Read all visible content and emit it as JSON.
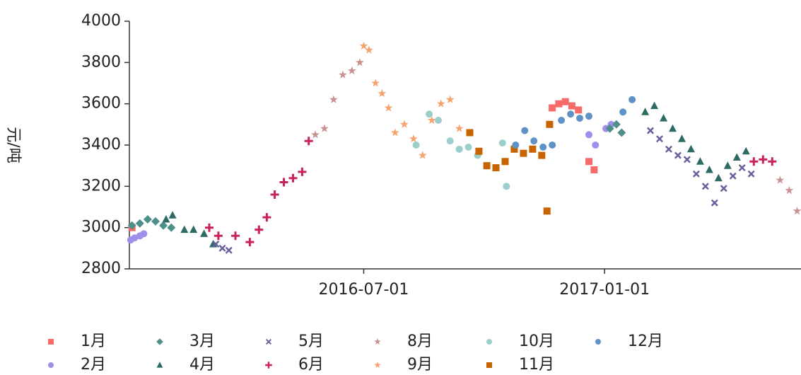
{
  "chart_data": {
    "type": "scatter",
    "y_label": "元/吨",
    "xlim": [
      "2016-01-04",
      "2017-05-31"
    ],
    "xticks": [
      "2016-07-01",
      "2017-01-01"
    ],
    "ylim": [
      2800,
      4000
    ],
    "yticks": [
      2800,
      3000,
      3200,
      3400,
      3600,
      3800,
      4000
    ],
    "grid": false,
    "series": [
      {
        "name": "1月",
        "color": "#f76a6a",
        "marker": "square",
        "x": [
          "2016-01-06",
          "2016-11-22",
          "2016-11-27",
          "2016-12-02",
          "2016-12-07",
          "2016-12-12",
          "2016-12-20",
          "2016-12-24"
        ],
        "values": [
          3000,
          3580,
          3600,
          3610,
          3590,
          3570,
          3320,
          3280
        ]
      },
      {
        "name": "2月",
        "color": "#9d8fea",
        "marker": "circle",
        "x": [
          "2016-01-05",
          "2016-01-08",
          "2016-01-12",
          "2016-01-15",
          "2016-12-20",
          "2016-12-25",
          "2017-01-02",
          "2017-01-06"
        ],
        "values": [
          2940,
          2950,
          2960,
          2970,
          3450,
          3400,
          3480,
          3500
        ]
      },
      {
        "name": "3月",
        "color": "#4f8f8a",
        "marker": "diamond",
        "x": [
          "2016-01-06",
          "2016-01-12",
          "2016-01-18",
          "2016-01-24",
          "2016-01-30",
          "2016-02-05",
          "2017-01-05",
          "2017-01-10",
          "2017-01-14"
        ],
        "values": [
          3010,
          3020,
          3040,
          3030,
          3010,
          3000,
          3480,
          3500,
          3460
        ]
      },
      {
        "name": "4月",
        "color": "#2d6a63",
        "marker": "triangle",
        "x": [
          "2016-02-01",
          "2016-02-06",
          "2016-02-15",
          "2016-02-22",
          "2016-03-01",
          "2016-03-08",
          "2017-02-01",
          "2017-02-08",
          "2017-02-15",
          "2017-02-22",
          "2017-03-01",
          "2017-03-08",
          "2017-03-15",
          "2017-03-22",
          "2017-03-29",
          "2017-04-05",
          "2017-04-12",
          "2017-04-19"
        ],
        "values": [
          3040,
          3060,
          2990,
          2990,
          2970,
          2920,
          3560,
          3590,
          3530,
          3480,
          3430,
          3380,
          3320,
          3280,
          3240,
          3300,
          3340,
          3370
        ]
      },
      {
        "name": "5月",
        "color": "#6a5f9e",
        "marker": "cross",
        "x": [
          "2016-03-10",
          "2016-03-15",
          "2016-03-20",
          "2017-02-05",
          "2017-02-12",
          "2017-02-19",
          "2017-02-26",
          "2017-03-05",
          "2017-03-12",
          "2017-03-19",
          "2017-03-26",
          "2017-04-02",
          "2017-04-09",
          "2017-04-16",
          "2017-04-23"
        ],
        "values": [
          2920,
          2900,
          2890,
          3470,
          3430,
          3380,
          3350,
          3330,
          3260,
          3200,
          3120,
          3190,
          3250,
          3290,
          3260
        ]
      },
      {
        "name": "6月",
        "color": "#c8245a",
        "marker": "plus",
        "x": [
          "2016-03-05",
          "2016-03-12",
          "2016-03-25",
          "2016-04-05",
          "2016-04-12",
          "2016-04-18",
          "2016-04-24",
          "2016-05-01",
          "2016-05-08",
          "2016-05-15",
          "2016-05-20",
          "2017-04-25",
          "2017-05-02",
          "2017-05-09"
        ],
        "values": [
          3000,
          2960,
          2960,
          2930,
          2990,
          3050,
          3160,
          3220,
          3240,
          3270,
          3420,
          3320,
          3330,
          3320
        ]
      },
      {
        "name": "8月",
        "color": "#c99290",
        "marker": "star",
        "x": [
          "2016-05-25",
          "2016-06-01",
          "2016-06-08",
          "2016-06-15",
          "2016-06-22",
          "2016-06-28",
          "2017-05-15",
          "2017-05-22",
          "2017-05-28"
        ],
        "values": [
          3450,
          3480,
          3620,
          3740,
          3760,
          3800,
          3230,
          3180,
          3080
        ]
      },
      {
        "name": "9月",
        "color": "#f6a36f",
        "marker": "star",
        "x": [
          "2016-07-01",
          "2016-07-05",
          "2016-07-10",
          "2016-07-15",
          "2016-07-20",
          "2016-07-25",
          "2016-08-01",
          "2016-08-08",
          "2016-08-15",
          "2016-08-22",
          "2016-08-29",
          "2016-09-05",
          "2016-09-12"
        ],
        "values": [
          3880,
          3860,
          3700,
          3650,
          3580,
          3460,
          3500,
          3430,
          3350,
          3520,
          3600,
          3620,
          3480
        ]
      },
      {
        "name": "10月",
        "color": "#9ccfcb",
        "marker": "circle",
        "x": [
          "2016-08-10",
          "2016-08-20",
          "2016-08-27",
          "2016-09-05",
          "2016-09-12",
          "2016-09-19",
          "2016-09-26",
          "2016-10-15",
          "2016-10-18"
        ],
        "values": [
          3400,
          3550,
          3520,
          3420,
          3380,
          3390,
          3350,
          3410,
          3200
        ]
      },
      {
        "name": "11月",
        "color": "#c86400",
        "marker": "square",
        "x": [
          "2016-09-20",
          "2016-09-27",
          "2016-10-03",
          "2016-10-10",
          "2016-10-17",
          "2016-10-24",
          "2016-10-31",
          "2016-11-07",
          "2016-11-14",
          "2016-11-20",
          "2016-11-18"
        ],
        "values": [
          3460,
          3370,
          3300,
          3290,
          3320,
          3380,
          3360,
          3380,
          3350,
          3500,
          3080
        ]
      },
      {
        "name": "12月",
        "color": "#5f93c8",
        "marker": "circle",
        "x": [
          "2016-10-25",
          "2016-11-01",
          "2016-11-08",
          "2016-11-15",
          "2016-11-22",
          "2016-11-29",
          "2016-12-06",
          "2016-12-13",
          "2016-12-20",
          "2017-01-15",
          "2017-01-22"
        ],
        "values": [
          3400,
          3470,
          3420,
          3390,
          3400,
          3520,
          3550,
          3530,
          3540,
          3560,
          3620
        ]
      }
    ]
  }
}
